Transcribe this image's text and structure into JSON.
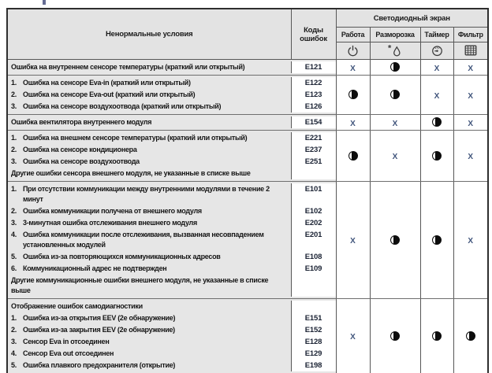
{
  "header": {
    "condition_col": "Ненормальные условия",
    "codes_col": "Коды ошибок",
    "led_group": "Светодиодный экран",
    "led_cols": [
      {
        "label": "Работа",
        "icon": "power-icon"
      },
      {
        "label": "Разморозка",
        "icon": "defrost-icon"
      },
      {
        "label": "Таймер",
        "icon": "timer-icon"
      },
      {
        "label": "Фильтр",
        "icon": "filter-icon"
      }
    ]
  },
  "symbols": {
    "off": "X",
    "blink": "◑"
  },
  "rows": [
    {
      "items": [
        {
          "num": "",
          "text": "Ошибка на внутреннем сенсоре температуры (краткий или открытый)",
          "code": "E121"
        }
      ],
      "leds": [
        "X",
        "◑",
        "X",
        "X"
      ]
    },
    {
      "items": [
        {
          "num": "1.",
          "text": "Ошибка на сенсоре Eva-in (краткий или открытый)",
          "code": "E122"
        },
        {
          "num": "2.",
          "text": "Ошибка на сенсоре Eva-out (краткий или открытый)",
          "code": "E123"
        },
        {
          "num": "3.",
          "text": "Ошибка на сенсоре воздухоотвода (краткий или открытый)",
          "code": "E126"
        }
      ],
      "leds": [
        "◑",
        "◑",
        "X",
        "X"
      ]
    },
    {
      "items": [
        {
          "num": "",
          "text": "Ошибка вентилятора внутреннего модуля",
          "code": "E154"
        }
      ],
      "leds": [
        "X",
        "X",
        "◑",
        "X"
      ]
    },
    {
      "items": [
        {
          "num": "1.",
          "text": "Ошибка на внешнем сенсоре температуры (краткий или открытый)",
          "code": "E221"
        },
        {
          "num": "2.",
          "text": "Ошибка на сенсоре кондиционера",
          "code": "E237"
        },
        {
          "num": "3.",
          "text": "Ошибка на сенсоре воздухоотвода",
          "code": "E251"
        },
        {
          "num": "",
          "text": "Другие ошибки сенсора внешнего модуля, не указанные в списке выше",
          "code": ""
        }
      ],
      "leds": [
        "◑",
        "X",
        "◑",
        "X"
      ]
    },
    {
      "items": [
        {
          "num": "1.",
          "text": "При отсутствии коммуникации между внутренними модулями в течение 2 минут",
          "code": "E101"
        },
        {
          "num": "2.",
          "text": "Ошибка коммуникации получена от внешнего модуля",
          "code": "E102"
        },
        {
          "num": "3.",
          "text": "3-минутная ошибка отслеживания внешнего модуля",
          "code": "E202"
        },
        {
          "num": "4.",
          "text": "Ошибка коммуникации после отслеживания, вызванная несовпадением установленных модулей",
          "code": "E201"
        },
        {
          "num": "5.",
          "text": "Ошибка из-за повторяющихся коммуникационных адресов",
          "code": "E108"
        },
        {
          "num": "6.",
          "text": "Коммуникационный адрес не подтвержден",
          "code": "E109"
        },
        {
          "num": "",
          "text": "Другие коммуникационные ошибки внешнего модуля, не указанные в списке выше",
          "code": ""
        }
      ],
      "leds": [
        "X",
        "◑",
        "◑",
        "X"
      ]
    },
    {
      "items": [
        {
          "num": "",
          "text": "Отображение ошибок самодиагностики",
          "code": ""
        },
        {
          "num": "1.",
          "text": "Ошибка из-за открытия EEV (2е обнаружение)",
          "code": "E151"
        },
        {
          "num": "2.",
          "text": "Ошибка из-за закрытия EEV (2е обнаружение)",
          "code": "E152"
        },
        {
          "num": "3.",
          "text": "Сенсор Eva in отсоединен",
          "code": "E128"
        },
        {
          "num": "4.",
          "text": "Сенсор Eva out отсоединен",
          "code": "E129"
        },
        {
          "num": "5.",
          "text": "Ошибка плавкого предохранителя (открытие)",
          "code": "E198"
        }
      ],
      "leds": [
        "X",
        "◑",
        "◑",
        "◑"
      ]
    }
  ],
  "colors": {
    "header_bg": "#e3e3e3",
    "condition_bg": "#e6e6e6",
    "cell_bg": "#ffffff",
    "border": "#575757",
    "x_mark": "#41557c",
    "code_text": "#1a2233"
  }
}
